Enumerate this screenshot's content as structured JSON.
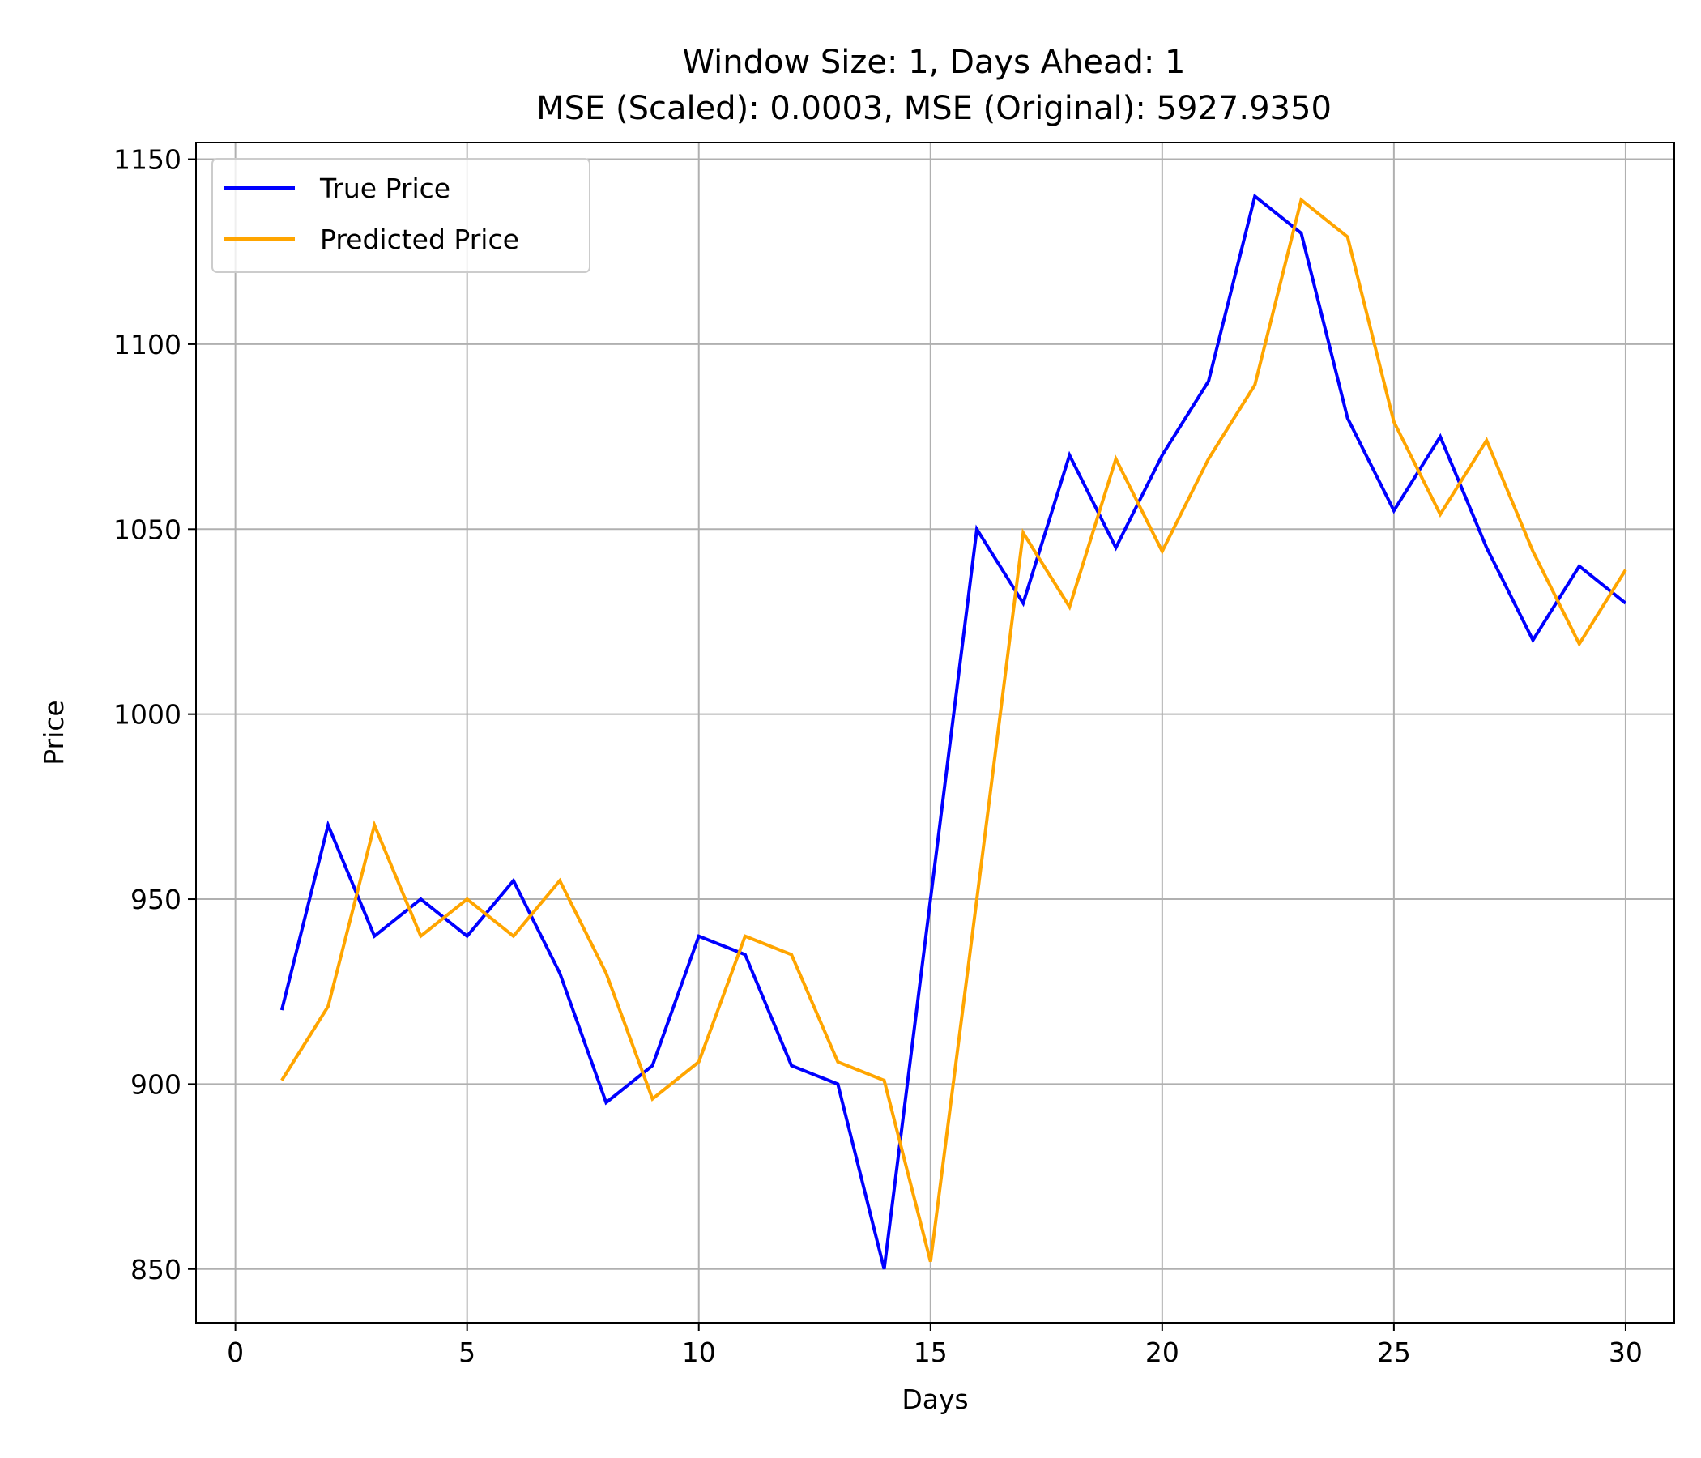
{
  "chart_data": {
    "type": "line",
    "title_lines": [
      "Window Size: 1, Days Ahead: 1",
      "MSE (Scaled): 0.0003, MSE (Original): 5927.9350"
    ],
    "xlabel": "Days",
    "ylabel": "Price",
    "xlim": [
      -0.85,
      31.05
    ],
    "ylim": [
      835.5,
      1154.5
    ],
    "xticks": [
      0,
      5,
      10,
      15,
      20,
      25,
      30
    ],
    "yticks": [
      850,
      900,
      950,
      1000,
      1050,
      1100,
      1150
    ],
    "grid": true,
    "legend_position": "top-left",
    "x": [
      1,
      2,
      3,
      4,
      5,
      6,
      7,
      8,
      9,
      10,
      11,
      12,
      13,
      14,
      15,
      16,
      17,
      18,
      19,
      20,
      21,
      22,
      23,
      24,
      25,
      26,
      27,
      28,
      29,
      30
    ],
    "series": [
      {
        "name": "True Price",
        "color": "#0000ff",
        "values": [
          920,
          970,
          940,
          950,
          940,
          955,
          930,
          895,
          905,
          940,
          935,
          905,
          900,
          850,
          950,
          1050,
          1030,
          1070,
          1045,
          1070,
          1090,
          1140,
          1130,
          1080,
          1055,
          1075,
          1045,
          1020,
          1040,
          1030
        ]
      },
      {
        "name": "Predicted Price",
        "color": "#ffa500",
        "values": [
          901,
          921,
          970,
          940,
          950,
          940,
          955,
          930,
          896,
          906,
          940,
          935,
          906,
          901,
          852,
          950,
          1049,
          1029,
          1069,
          1044,
          1069,
          1089,
          1139,
          1129,
          1079,
          1054,
          1074,
          1044,
          1019,
          1039
        ]
      }
    ]
  }
}
